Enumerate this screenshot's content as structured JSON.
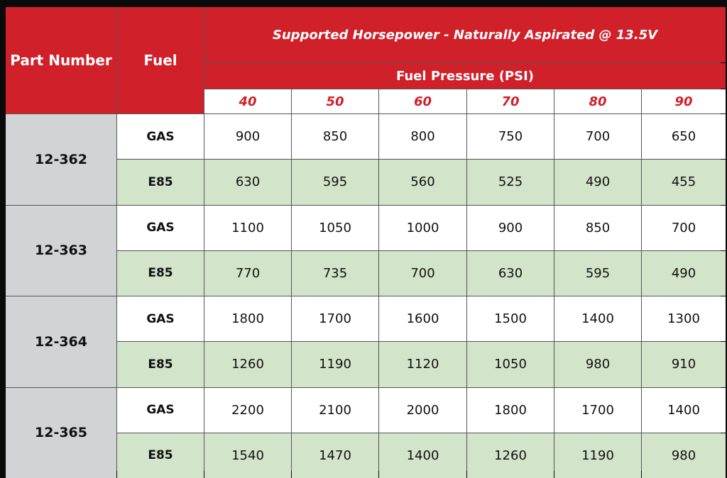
{
  "header": {
    "part_number": "Part Number",
    "fuel": "Fuel",
    "title": "Supported Horsepower - Naturally Aspirated @ 13.5V",
    "subtitle": "Fuel Pressure (PSI)",
    "pressures": [
      "40",
      "50",
      "60",
      "70",
      "80",
      "90"
    ]
  },
  "colors": {
    "header_red": "#d0202a",
    "part_gray": "#d2d3d5",
    "e85_green": "#d2e4c9"
  },
  "rows": [
    {
      "part": "12-362",
      "gas": [
        "900",
        "850",
        "800",
        "750",
        "700",
        "650"
      ],
      "e85": [
        "630",
        "595",
        "560",
        "525",
        "490",
        "455"
      ]
    },
    {
      "part": "12-363",
      "gas": [
        "1100",
        "1050",
        "1000",
        "900",
        "850",
        "700"
      ],
      "e85": [
        "770",
        "735",
        "700",
        "630",
        "595",
        "490"
      ]
    },
    {
      "part": "12-364",
      "gas": [
        "1800",
        "1700",
        "1600",
        "1500",
        "1400",
        "1300"
      ],
      "e85": [
        "1260",
        "1190",
        "1120",
        "1050",
        "980",
        "910"
      ]
    },
    {
      "part": "12-365",
      "gas": [
        "2200",
        "2100",
        "2000",
        "1800",
        "1700",
        "1400"
      ],
      "e85": [
        "1540",
        "1470",
        "1400",
        "1260",
        "1190",
        "980"
      ]
    }
  ],
  "fuel_labels": {
    "gas": "GAS",
    "e85": "E85"
  }
}
